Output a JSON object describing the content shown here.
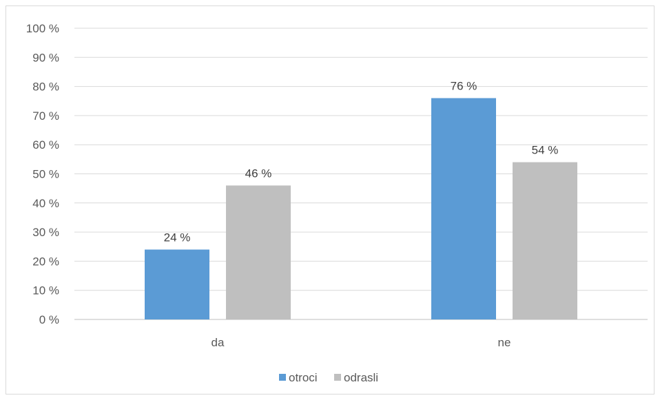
{
  "chart_data": {
    "type": "bar",
    "categories": [
      "da",
      "ne"
    ],
    "series": [
      {
        "name": "otroci",
        "values": [
          24,
          76
        ],
        "color": "#5b9bd5"
      },
      {
        "name": "odrasli",
        "values": [
          46,
          54
        ],
        "color": "#bfbfbf"
      }
    ],
    "value_labels": [
      [
        "24 %",
        "76 %"
      ],
      [
        "46 %",
        "54 %"
      ]
    ],
    "y_ticks": [
      "0 %",
      "10 %",
      "20 %",
      "30 %",
      "40 %",
      "50 %",
      "60 %",
      "70 %",
      "80 %",
      "90 %",
      "100 %"
    ],
    "ylim": [
      0,
      100
    ],
    "grid": true,
    "legend_position": "bottom",
    "gridline_color": "#d9d9d9"
  }
}
